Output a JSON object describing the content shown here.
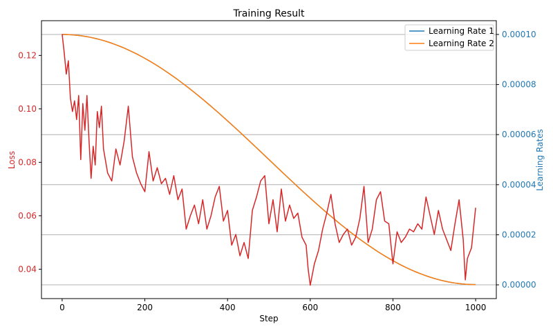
{
  "chart_data": {
    "type": "line",
    "title": "Training Result",
    "xlabel": "Step",
    "ylabel_left": "Loss",
    "ylabel_right": "Learning Rates",
    "xlim": [
      -50,
      1050
    ],
    "ylim_left": [
      0.029,
      0.133
    ],
    "ylim_right": [
      -5.5e-06,
      0.0001055
    ],
    "x_ticks": [
      0,
      200,
      400,
      600,
      800,
      1000
    ],
    "x_tick_labels": [
      "0",
      "200",
      "400",
      "600",
      "800",
      "1000"
    ],
    "y_left_ticks": [
      0.04,
      0.06,
      0.08,
      0.1,
      0.12
    ],
    "y_left_tick_labels": [
      "0.04",
      "0.06",
      "0.08",
      "0.10",
      "0.12"
    ],
    "y_right_ticks": [
      0,
      2e-05,
      4e-05,
      6e-05,
      8e-05,
      0.0001
    ],
    "y_right_tick_labels": [
      "0.00000",
      "0.00002",
      "0.00004",
      "0.00006",
      "0.00008",
      "0.00010"
    ],
    "grid": "horizontal (right axis)",
    "legend_position": "top-right",
    "colors": {
      "loss": "#d62728",
      "lr1": "#1f77b4",
      "lr2": "#ff7f0e",
      "left_axis_text": "#d62728",
      "right_axis_text": "#1f77b4",
      "grid": "#b0b0b0"
    },
    "series": [
      {
        "axis": "left",
        "x": [
          0,
          5,
          10,
          15,
          20,
          25,
          30,
          35,
          40,
          45,
          50,
          55,
          60,
          65,
          70,
          75,
          80,
          85,
          90,
          95,
          100,
          110,
          120,
          130,
          140,
          150,
          160,
          170,
          180,
          190,
          200,
          210,
          220,
          230,
          240,
          250,
          260,
          270,
          280,
          290,
          300,
          310,
          320,
          330,
          340,
          350,
          360,
          370,
          380,
          390,
          400,
          410,
          420,
          430,
          440,
          450,
          460,
          470,
          480,
          490,
          500,
          510,
          520,
          530,
          540,
          550,
          560,
          570,
          580,
          590,
          595,
          600,
          610,
          620,
          630,
          640,
          650,
          660,
          670,
          680,
          690,
          700,
          710,
          720,
          730,
          740,
          750,
          760,
          770,
          780,
          790,
          800,
          810,
          820,
          830,
          840,
          850,
          860,
          870,
          880,
          890,
          900,
          910,
          920,
          930,
          940,
          950,
          960,
          970,
          975,
          980,
          990,
          1000
        ],
        "values": [
          0.128,
          0.121,
          0.113,
          0.118,
          0.104,
          0.099,
          0.103,
          0.096,
          0.105,
          0.081,
          0.102,
          0.092,
          0.105,
          0.088,
          0.074,
          0.086,
          0.079,
          0.099,
          0.093,
          0.101,
          0.085,
          0.076,
          0.073,
          0.085,
          0.079,
          0.088,
          0.101,
          0.082,
          0.076,
          0.072,
          0.069,
          0.084,
          0.073,
          0.078,
          0.072,
          0.074,
          0.068,
          0.075,
          0.066,
          0.07,
          0.055,
          0.06,
          0.064,
          0.057,
          0.066,
          0.055,
          0.06,
          0.067,
          0.071,
          0.058,
          0.062,
          0.049,
          0.053,
          0.045,
          0.05,
          0.044,
          0.062,
          0.067,
          0.073,
          0.075,
          0.057,
          0.066,
          0.054,
          0.07,
          0.058,
          0.064,
          0.059,
          0.061,
          0.052,
          0.049,
          0.04,
          0.034,
          0.042,
          0.047,
          0.055,
          0.061,
          0.068,
          0.057,
          0.05,
          0.053,
          0.055,
          0.049,
          0.052,
          0.059,
          0.071,
          0.05,
          0.055,
          0.066,
          0.069,
          0.058,
          0.057,
          0.042,
          0.054,
          0.05,
          0.052,
          0.055,
          0.054,
          0.057,
          0.055,
          0.067,
          0.06,
          0.053,
          0.062,
          0.055,
          0.051,
          0.047,
          0.057,
          0.066,
          0.051,
          0.036,
          0.044,
          0.048,
          0.063
        ]
      },
      {
        "name": "Learning Rate 1",
        "axis": "right",
        "x": [
          0,
          1000
        ],
        "values": [
          0.0001,
          1e-07
        ]
      },
      {
        "name": "Learning Rate 2",
        "axis": "right",
        "x": [
          0,
          1000
        ],
        "values": [
          0.0001,
          1e-07
        ]
      }
    ]
  }
}
